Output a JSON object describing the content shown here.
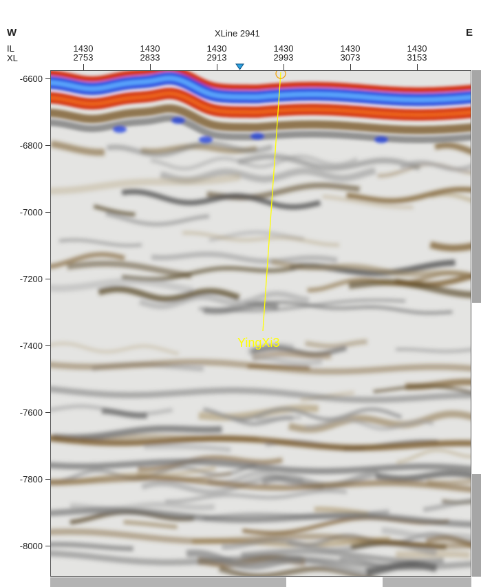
{
  "header": {
    "west": "W",
    "east": "E",
    "title": "XLine 2941",
    "il_tag": "IL",
    "xl_tag": "XL"
  },
  "chart_data": {
    "type": "heatmap",
    "title": "XLine 2941",
    "x_axis": {
      "il": [
        "1430",
        "1430",
        "1430",
        "1430",
        "1430",
        "1430"
      ],
      "xl": [
        "2753",
        "2833",
        "2913",
        "2993",
        "3073",
        "3153"
      ],
      "xl_values": [
        2753,
        2833,
        2913,
        2993,
        3073,
        3153
      ]
    },
    "y_axis": {
      "ticks": [
        "-6600",
        "-6800",
        "-7000",
        "-7200",
        "-7400",
        "-7600",
        "-7800",
        "-8000"
      ],
      "tick_values": [
        -6600,
        -6800,
        -7000,
        -7200,
        -7400,
        -7600,
        -7800,
        -8000
      ]
    },
    "well": {
      "name": "YingXi3",
      "color": "#ffff00"
    },
    "colors": {
      "positive_strong": "#1e3ee0",
      "positive_light": "#5fb0ff",
      "negative_strong": "#d21e00",
      "negative_mid": "#f06c1e",
      "brown": "#7a5a2a",
      "gray": "#6e6e6e",
      "background": "#e6e6e6"
    }
  }
}
